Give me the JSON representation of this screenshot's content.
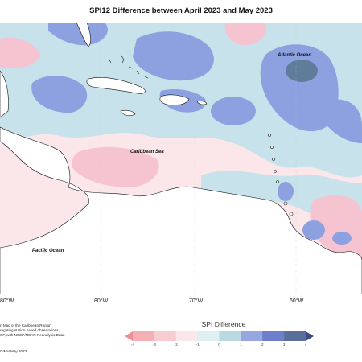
{
  "title": "SPI12 Difference between April 2023 and May 2023",
  "labels": {
    "atlantic": "Atlantic Ocean",
    "caribbean": "Caribbean Sea",
    "pacific": "Pacific Ocean"
  },
  "axis_ticks": [
    "80°W",
    "80°W",
    "70°W",
    "60°W"
  ],
  "note_lines": [
    "n Map of the Caribbean Region",
    "regating station based observations,",
    "CF, with NCEP/NCAR Reanalysis Data."
  ],
  "credit": "CIMH May 2023",
  "legend": {
    "title": "SPI Difference",
    "ticks": [
      "-4",
      "-3",
      "-2",
      "-1",
      "0",
      "1",
      "2",
      "3",
      "4"
    ],
    "colors": [
      "#f08e95",
      "#f5b0b5",
      "#f8cdd2",
      "#fbe6ea",
      "#dff0f3",
      "#b9d9e2",
      "#97a6e0",
      "#6d7ecb",
      "#5a6e9a",
      "#3d4a8a"
    ]
  },
  "colors": {
    "pos_light": "#c7e2ea",
    "pos_medium": "#8da0df",
    "pos_dark": "#5f7d9a",
    "neg_light": "#fbe2e8",
    "neg_medium": "#f6c4d1",
    "land": "#ffffff"
  }
}
